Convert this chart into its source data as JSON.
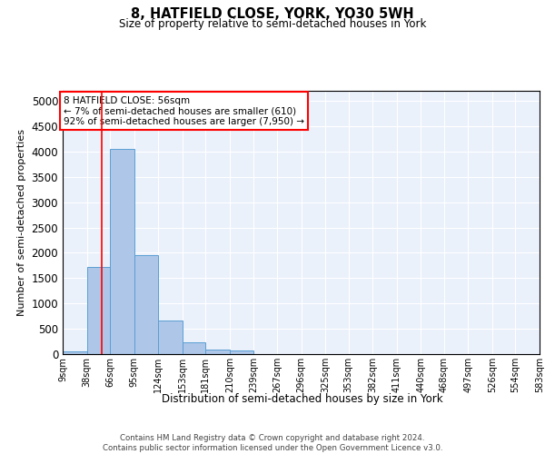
{
  "title": "8, HATFIELD CLOSE, YORK, YO30 5WH",
  "subtitle": "Size of property relative to semi-detached houses in York",
  "xlabel": "Distribution of semi-detached houses by size in York",
  "ylabel": "Number of semi-detached properties",
  "bar_values": [
    60,
    1730,
    4050,
    1950,
    670,
    230,
    90,
    75,
    0,
    0,
    0,
    0,
    0,
    0,
    0,
    0,
    0,
    0,
    0,
    0
  ],
  "bin_labels": [
    "9sqm",
    "38sqm",
    "66sqm",
    "95sqm",
    "124sqm",
    "153sqm",
    "181sqm",
    "210sqm",
    "239sqm",
    "267sqm",
    "296sqm",
    "325sqm",
    "353sqm",
    "382sqm",
    "411sqm",
    "440sqm",
    "468sqm",
    "497sqm",
    "526sqm",
    "554sqm",
    "583sqm"
  ],
  "bar_color": "#aec6e8",
  "bar_edge_color": "#5a9fd4",
  "annotation_text": "8 HATFIELD CLOSE: 56sqm\n← 7% of semi-detached houses are smaller (610)\n92% of semi-detached houses are larger (7,950) →",
  "annotation_box_color": "white",
  "annotation_box_edge_color": "red",
  "property_size": 56,
  "ylim": [
    0,
    5200
  ],
  "bin_edges": [
    9,
    38,
    66,
    95,
    124,
    153,
    181,
    210,
    239,
    267,
    296,
    325,
    353,
    382,
    411,
    440,
    468,
    497,
    526,
    554,
    583
  ],
  "yticks": [
    0,
    500,
    1000,
    1500,
    2000,
    2500,
    3000,
    3500,
    4000,
    4500,
    5000
  ],
  "footer_text": "Contains HM Land Registry data © Crown copyright and database right 2024.\nContains public sector information licensed under the Open Government Licence v3.0.",
  "background_color": "#eaf1fb",
  "grid_color": "white"
}
